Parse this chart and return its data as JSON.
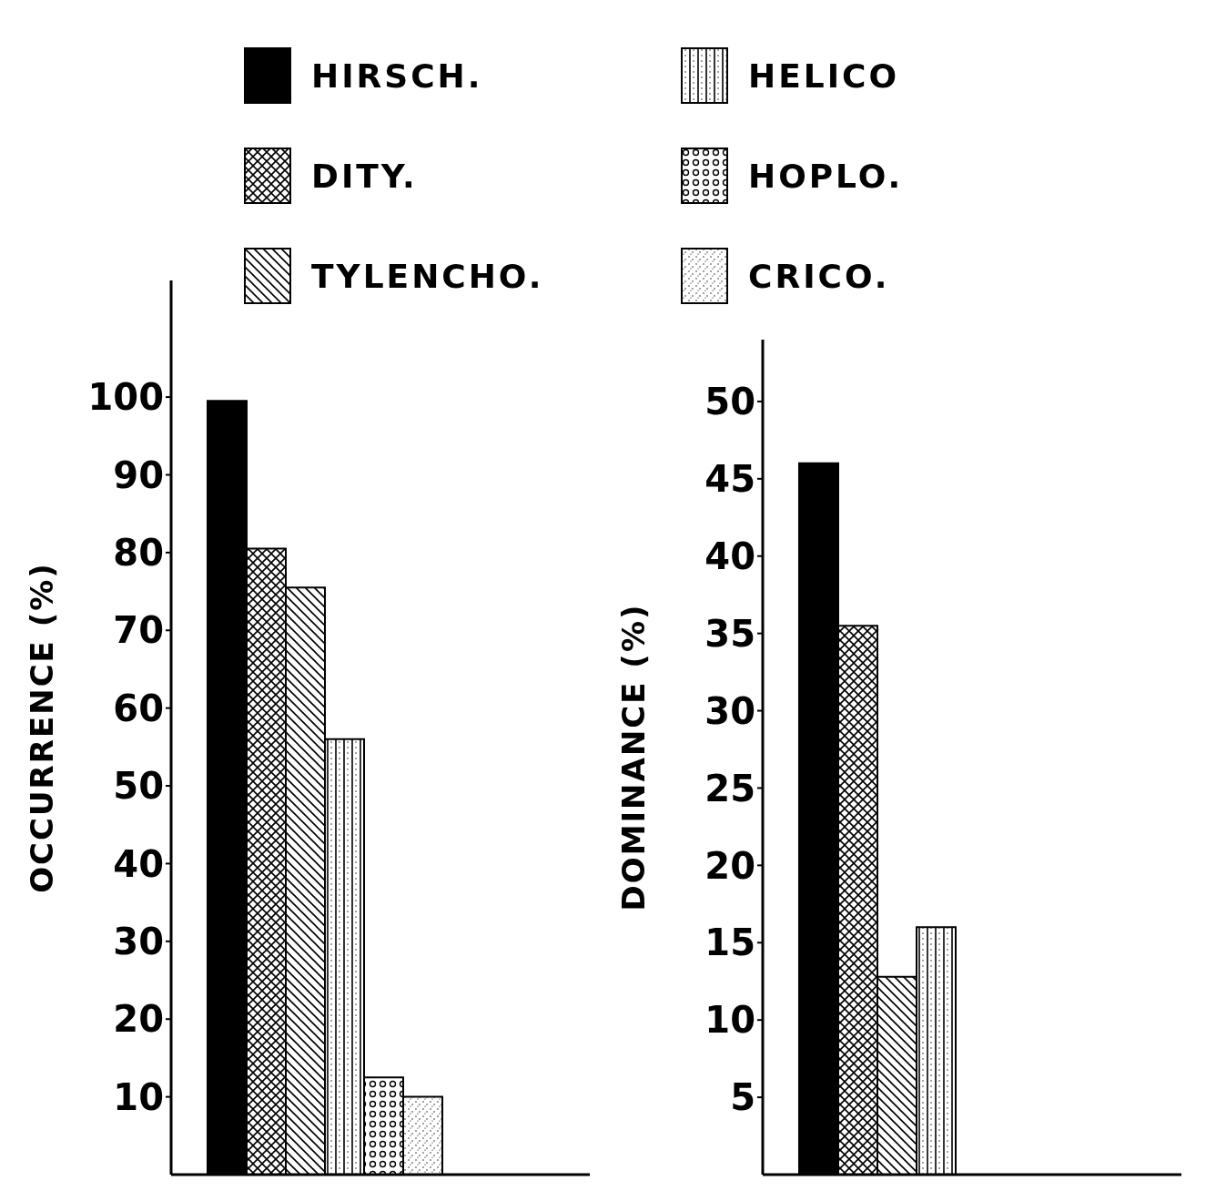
{
  "chart_data": [
    {
      "type": "bar",
      "ylabel": "OCCURRENCE (%)",
      "categories": [
        null
      ],
      "ylim": [
        0,
        115
      ],
      "yticks": [
        10,
        20,
        30,
        40,
        50,
        60,
        70,
        80,
        90,
        100
      ],
      "legend": "top",
      "tick_labels": "y",
      "series": [
        {
          "name": "HIRSCH.",
          "color": "#000000",
          "values": [
            99.5
          ]
        },
        {
          "name": "DITY.",
          "color": "#000000",
          "values": [
            80.5
          ]
        },
        {
          "name": "TYLENCHO.",
          "color": "#000000",
          "values": [
            75.5
          ]
        },
        {
          "name": "HELICO",
          "color": "#000000",
          "values": [
            56
          ]
        },
        {
          "name": "HOPLO.",
          "color": "#000000",
          "values": [
            12.5
          ]
        },
        {
          "name": "CRICO.",
          "color": "#000000",
          "values": [
            10
          ]
        }
      ]
    },
    {
      "type": "bar",
      "ylabel": "DOMINANCE (%)",
      "categories": [
        null
      ],
      "ylim": [
        0,
        54
      ],
      "yticks": [
        5,
        10,
        15,
        20,
        25,
        30,
        35,
        40,
        45,
        50
      ],
      "tick_labels": "y",
      "series": [
        {
          "color": "#000000",
          "values": [
            46
          ]
        },
        {
          "color": "#000000",
          "values": [
            35.5
          ]
        },
        {
          "color": "#000000",
          "values": [
            12.8
          ]
        },
        {
          "color": "#000000",
          "values": [
            16
          ]
        },
        {
          "color": "#000000",
          "values": [
            0
          ]
        },
        {
          "color": "#000000",
          "values": [
            0
          ]
        }
      ]
    }
  ]
}
